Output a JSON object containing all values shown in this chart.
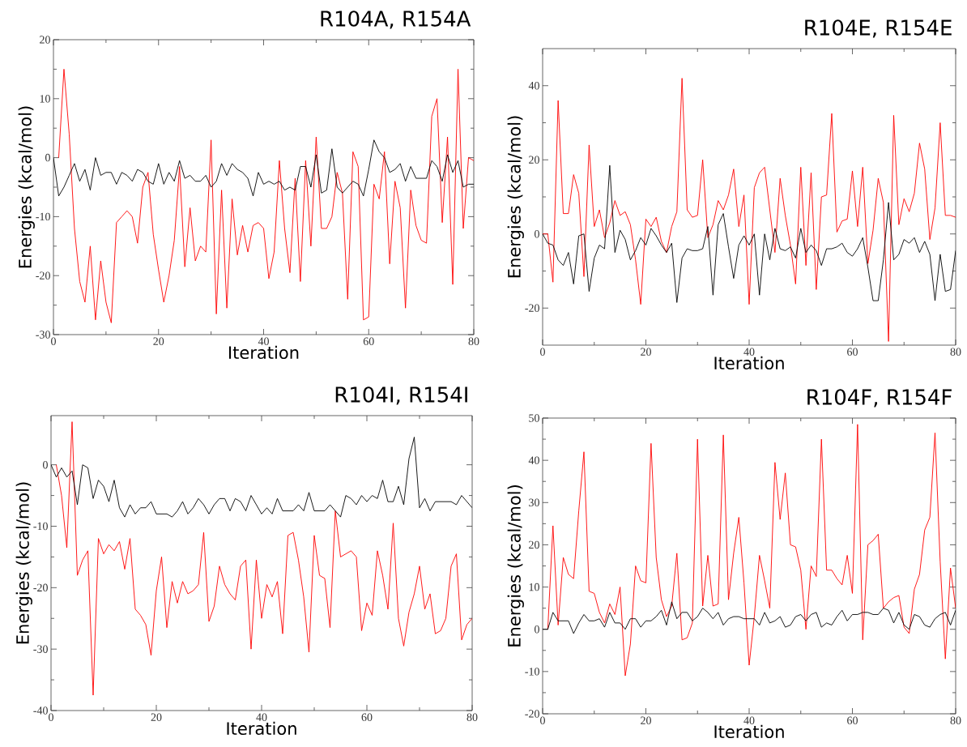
{
  "chart_data": [
    {
      "type": "line",
      "title": "R104A, R154A",
      "xlabel": "Iteration",
      "ylabel": "Energies (kcal/mol)",
      "xlim": [
        0,
        80
      ],
      "ylim": [
        -30,
        20
      ],
      "xticks": [
        0,
        20,
        40,
        60,
        80
      ],
      "yticks": [
        -30,
        -20,
        -10,
        0,
        10,
        20
      ],
      "x": [
        0,
        1,
        2,
        3,
        4,
        5,
        6,
        7,
        8,
        9,
        10,
        11,
        12,
        13,
        14,
        15,
        16,
        17,
        18,
        19,
        20,
        21,
        22,
        23,
        24,
        25,
        26,
        27,
        28,
        29,
        30,
        31,
        32,
        33,
        34,
        35,
        36,
        37,
        38,
        39,
        40,
        41,
        42,
        43,
        44,
        45,
        46,
        47,
        48,
        49,
        50,
        51,
        52,
        53,
        54,
        55,
        56,
        57,
        58,
        59,
        60,
        61,
        62,
        63,
        64,
        65,
        66,
        67,
        68,
        69,
        70,
        71,
        72,
        73,
        74,
        75,
        76,
        77,
        78,
        79,
        80
      ],
      "series": [
        {
          "color": "#ff0000",
          "values": [
            null,
            0,
            15,
            4,
            -12,
            -21,
            -24.5,
            -15,
            -27.5,
            -17.5,
            -24.5,
            -28,
            -11,
            -10,
            -9,
            -10,
            -14.5,
            -5,
            -2.5,
            -13,
            -19,
            -24.5,
            -20,
            -14,
            -1.5,
            -18.5,
            -8.5,
            -17.5,
            -15,
            -16,
            3,
            -26.5,
            -5.5,
            -25.5,
            -7,
            -16.5,
            -11.5,
            -16,
            -11.5,
            -11,
            -12,
            -20.5,
            -16,
            -0.5,
            -12,
            -19.5,
            -3.5,
            -21,
            -0.5,
            -15,
            3.5,
            -12,
            -12,
            -10,
            -2.5,
            -6,
            -24,
            1,
            -1.5,
            -27.5,
            -27,
            -4.5,
            -7,
            1,
            -18,
            -4,
            -8.5,
            -25.5,
            -5.5,
            -11.5,
            -14,
            -14.5,
            7,
            10,
            -11,
            3.5,
            -21.5,
            15,
            -12,
            0,
            -0.5
          ]
        },
        {
          "color": "#000000",
          "values": [
            0,
            -6.5,
            -5,
            -3,
            -1,
            -4,
            -2,
            -5.5,
            0,
            -3,
            -2.5,
            -2.5,
            -4.5,
            -2.5,
            -3,
            -4,
            -2,
            -2.5,
            -4,
            -4.5,
            -1,
            -4.5,
            -2.5,
            -4,
            -0.5,
            -3.5,
            -3,
            -4,
            -4,
            -3,
            -5,
            -4,
            -1,
            -3,
            -1,
            -2,
            -2.5,
            -3.5,
            -6.5,
            -2.5,
            -4.5,
            -4,
            -4.5,
            -4,
            -5.5,
            -5,
            -5.5,
            -1.5,
            -1.5,
            -5,
            0.5,
            -6,
            -5.5,
            1.5,
            -5,
            -6,
            -5,
            -4,
            -4.5,
            -6.5,
            -2,
            3,
            1,
            0,
            -2.5,
            -2,
            -1,
            -4,
            -1.5,
            -3.5,
            -3.5,
            -3.5,
            -0.5,
            -1.5,
            -4,
            0.5,
            -2.5,
            -0.5,
            -5,
            -4.5,
            -4.5
          ]
        }
      ]
    },
    {
      "type": "line",
      "title": "R104E, R154E",
      "xlabel": "Iteration",
      "ylabel": "Energies (kcal/mol)",
      "xlim": [
        0,
        80
      ],
      "ylim": [
        -30,
        50
      ],
      "xticks": [
        0,
        20,
        40,
        60,
        80
      ],
      "yticks": [
        -20,
        0,
        20,
        40
      ],
      "x": [
        0,
        1,
        2,
        3,
        4,
        5,
        6,
        7,
        8,
        9,
        10,
        11,
        12,
        13,
        14,
        15,
        16,
        17,
        18,
        19,
        20,
        21,
        22,
        23,
        24,
        25,
        26,
        27,
        28,
        29,
        30,
        31,
        32,
        33,
        34,
        35,
        36,
        37,
        38,
        39,
        40,
        41,
        42,
        43,
        44,
        45,
        46,
        47,
        48,
        49,
        50,
        51,
        52,
        53,
        54,
        55,
        56,
        57,
        58,
        59,
        60,
        61,
        62,
        63,
        64,
        65,
        66,
        67,
        68,
        69,
        70,
        71,
        72,
        73,
        74,
        75,
        76,
        77,
        78,
        79,
        80
      ],
      "series": [
        {
          "color": "#ff0000",
          "values": [
            0,
            0,
            -13,
            36,
            5.5,
            5.5,
            16,
            11,
            -11.5,
            24,
            2,
            6.5,
            -1,
            3,
            9,
            5,
            6,
            2.5,
            -7,
            -19,
            4,
            2,
            4.5,
            -2,
            -5,
            2,
            6,
            42,
            6.5,
            4.5,
            5,
            20,
            -1,
            2.5,
            9,
            6.5,
            10.5,
            17.5,
            2,
            10.5,
            -19,
            12.5,
            16.5,
            18,
            6.5,
            -5,
            15,
            5,
            -3,
            -13.5,
            18,
            -8.5,
            16.5,
            -15,
            10,
            10.5,
            32.5,
            0.5,
            3.5,
            4,
            17,
            2,
            18,
            -8,
            1,
            15,
            8.5,
            -29,
            32,
            2.5,
            9.5,
            6,
            11,
            24.5,
            17.5,
            -1.5,
            7,
            30,
            5,
            5,
            4.5
          ]
        },
        {
          "color": "#000000",
          "values": [
            0,
            -2.5,
            -3,
            -7,
            -8.5,
            -5,
            -13.5,
            -0.5,
            0,
            -15.5,
            -6.5,
            -3,
            -4,
            18.5,
            -5,
            1,
            -1.5,
            -7,
            -4.5,
            -1,
            -3,
            1.5,
            -0.5,
            -3,
            -5,
            -2.5,
            -18.5,
            -6.5,
            -4,
            -4.5,
            -4.5,
            -4,
            2,
            -16.5,
            2.5,
            5.5,
            -3.5,
            -12,
            -3,
            -0.5,
            -3,
            0,
            -16.5,
            0,
            -7,
            1.5,
            -4,
            -4.5,
            -3.5,
            -6.5,
            1.5,
            -5,
            -3,
            -4.5,
            -8.5,
            -4,
            -4,
            -3.5,
            -2.5,
            -5,
            -6,
            -4,
            -1,
            -9,
            -18,
            -18,
            -7,
            8.5,
            -7,
            -5.5,
            -1.5,
            -2.5,
            -1,
            -5,
            -2,
            -5.5,
            -18,
            -5.5,
            -15.5,
            -15,
            -4.5
          ]
        }
      ]
    },
    {
      "type": "line",
      "title": "R104I, R154I",
      "xlabel": "Iteration",
      "ylabel": "Energies (kcal/mol)",
      "xlim": [
        0,
        80
      ],
      "ylim": [
        -40,
        8
      ],
      "xticks": [
        0,
        20,
        40,
        60,
        80
      ],
      "yticks": [
        -40,
        -30,
        -20,
        -10,
        0
      ],
      "x": [
        0,
        1,
        2,
        3,
        4,
        5,
        6,
        7,
        8,
        9,
        10,
        11,
        12,
        13,
        14,
        15,
        16,
        17,
        18,
        19,
        20,
        21,
        22,
        23,
        24,
        25,
        26,
        27,
        28,
        29,
        30,
        31,
        32,
        33,
        34,
        35,
        36,
        37,
        38,
        39,
        40,
        41,
        42,
        43,
        44,
        45,
        46,
        47,
        48,
        49,
        50,
        51,
        52,
        53,
        54,
        55,
        56,
        57,
        58,
        59,
        60,
        61,
        62,
        63,
        64,
        65,
        66,
        67,
        68,
        69,
        70,
        71,
        72,
        73,
        74,
        75,
        76,
        77,
        78,
        79,
        80
      ],
      "series": [
        {
          "color": "#ff0000",
          "values": [
            null,
            0,
            -5,
            -13.5,
            7,
            -18,
            -15.5,
            -14,
            -37.5,
            -12,
            -14.5,
            -13,
            -14,
            -12.5,
            -17,
            -12,
            -23.5,
            -24.5,
            -26,
            -31,
            -20.5,
            -15,
            -26.5,
            -19,
            -22.5,
            -19,
            -21,
            -20.5,
            -19.5,
            -11,
            -25.5,
            -23,
            -16.5,
            -19.5,
            -21,
            -22,
            -16.5,
            -15.5,
            -30,
            -15.5,
            -25,
            -19.5,
            -21.5,
            -19,
            -27.5,
            -11.5,
            -11,
            -15.5,
            -21.5,
            -30.5,
            -11.5,
            -18,
            -18.5,
            -26.5,
            -7.5,
            -15,
            -14.5,
            -14,
            -15,
            -27,
            -22.5,
            -24.5,
            -14,
            -18,
            -23.5,
            -9.5,
            -25,
            -29.5,
            -24,
            -21,
            -16.5,
            -23.5,
            -21,
            -27.5,
            -27,
            -25,
            -16.5,
            -14.5,
            -28.5,
            -26,
            -25
          ]
        },
        {
          "color": "#000000",
          "values": [
            0,
            -2,
            -0.5,
            -2,
            -1,
            -6.5,
            0,
            -0.5,
            -5.5,
            -2.5,
            -3.5,
            -6,
            -2.5,
            -7,
            -8.5,
            -6.5,
            -8,
            -7,
            -7,
            -6,
            -8,
            -8,
            -8,
            -8.5,
            -7.5,
            -6,
            -8,
            -7,
            -5.5,
            -6.5,
            -8,
            -6.5,
            -5.5,
            -5.5,
            -7.5,
            -5.5,
            -6,
            -7.5,
            -5,
            -6.5,
            -8,
            -7,
            -8,
            -5.5,
            -7.5,
            -7.5,
            -7.5,
            -6.5,
            -7.5,
            -4.5,
            -7.5,
            -7.5,
            -7.5,
            -6.5,
            -7.5,
            -8.5,
            -5,
            -5.5,
            -6.5,
            -5,
            -6,
            -5,
            -5.5,
            -2.5,
            -6,
            -6,
            -3.5,
            -6.5,
            1,
            4.5,
            -7,
            -5.5,
            -7.5,
            -6,
            -6,
            -6,
            -6,
            -6.5,
            -5,
            -6,
            -7
          ]
        }
      ]
    },
    {
      "type": "line",
      "title": "R104F, R154F",
      "xlabel": "Iteration",
      "ylabel": "Energies (kcal/mol)",
      "xlim": [
        0,
        80
      ],
      "ylim": [
        -20,
        50
      ],
      "xticks": [
        0,
        20,
        40,
        60,
        80
      ],
      "yticks": [
        -20,
        -10,
        0,
        10,
        20,
        30,
        40,
        50
      ],
      "x": [
        0,
        1,
        2,
        3,
        4,
        5,
        6,
        7,
        8,
        9,
        10,
        11,
        12,
        13,
        14,
        15,
        16,
        17,
        18,
        19,
        20,
        21,
        22,
        23,
        24,
        25,
        26,
        27,
        28,
        29,
        30,
        31,
        32,
        33,
        34,
        35,
        36,
        37,
        38,
        39,
        40,
        41,
        42,
        43,
        44,
        45,
        46,
        47,
        48,
        49,
        50,
        51,
        52,
        53,
        54,
        55,
        56,
        57,
        58,
        59,
        60,
        61,
        62,
        63,
        64,
        65,
        66,
        67,
        68,
        69,
        70,
        71,
        72,
        73,
        74,
        75,
        76,
        77,
        78,
        79,
        80
      ],
      "series": [
        {
          "color": "#ff0000",
          "values": [
            null,
            0,
            24.5,
            1,
            17,
            13,
            12,
            28,
            42,
            9,
            8.5,
            4,
            1.5,
            6,
            3.5,
            10,
            -11,
            -3.5,
            15,
            11.5,
            11,
            44,
            17,
            7,
            3,
            5.5,
            18,
            -2.5,
            -2,
            1.5,
            45,
            5.5,
            17.5,
            5.5,
            6,
            46,
            7,
            18,
            26.5,
            11,
            -8.5,
            3,
            17.5,
            11.5,
            5,
            39.5,
            26,
            37,
            20,
            19.5,
            14,
            0,
            15,
            12.5,
            45,
            14,
            14,
            12,
            10.5,
            17.5,
            8.5,
            48.5,
            -2.5,
            20,
            21,
            22.5,
            5,
            6.5,
            7.5,
            8,
            0.5,
            -1,
            9.5,
            13,
            23.5,
            26.5,
            46.5,
            16,
            -7,
            14.5,
            5
          ]
        },
        {
          "color": "#000000",
          "values": [
            0,
            0,
            4,
            2,
            2,
            2,
            -1,
            1.5,
            3.5,
            2,
            2,
            2.5,
            0.5,
            4,
            1.5,
            1.5,
            0,
            2.5,
            2.5,
            0.5,
            2,
            2,
            3,
            4.5,
            1,
            6.5,
            2.5,
            4,
            4,
            2,
            3,
            5,
            4,
            2.5,
            4,
            1,
            2.5,
            3,
            3,
            2.5,
            2.5,
            2.5,
            1,
            4,
            1.5,
            2,
            3,
            0.5,
            1,
            3,
            3.5,
            2,
            3.5,
            4,
            0.5,
            1.5,
            1,
            3,
            4.5,
            2,
            3.5,
            3.5,
            4,
            4,
            3.5,
            3.5,
            5,
            4.5,
            1.5,
            4,
            1,
            0,
            3.5,
            3,
            1,
            0.5,
            2.5,
            3.5,
            4,
            1,
            4.5
          ]
        }
      ]
    }
  ]
}
